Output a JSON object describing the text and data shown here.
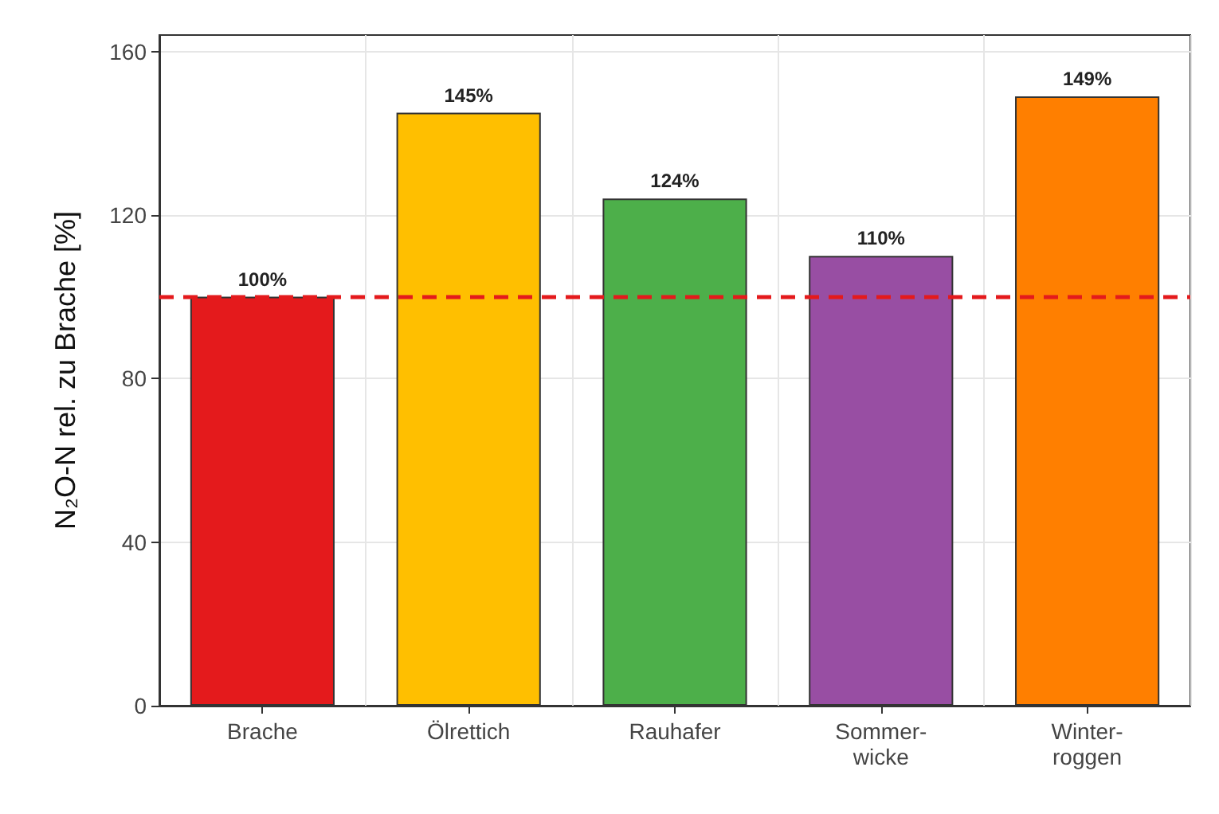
{
  "chart_data": {
    "type": "bar",
    "ylabel": "N₂O-N rel. zu Brache [%]",
    "categories": [
      "Brache",
      "Ölrettich",
      "Rauhafer",
      "Sommer-\nwicke",
      "Winter-\nroggen"
    ],
    "values": [
      100,
      145,
      124,
      110,
      149
    ],
    "colors": [
      "#e41a1c",
      "#ffbf00",
      "#4daf4a",
      "#984ea3",
      "#ff7f00"
    ],
    "value_labels": [
      "100%",
      "145%",
      "124%",
      "110%",
      "149%"
    ],
    "ylim": [
      0,
      164
    ],
    "yticks": [
      0,
      40,
      80,
      120,
      160
    ],
    "grid": true,
    "ref_lines": [
      {
        "axis": "y",
        "value": 100,
        "color": "#e41a1c",
        "line_style": "dashed"
      }
    ]
  }
}
